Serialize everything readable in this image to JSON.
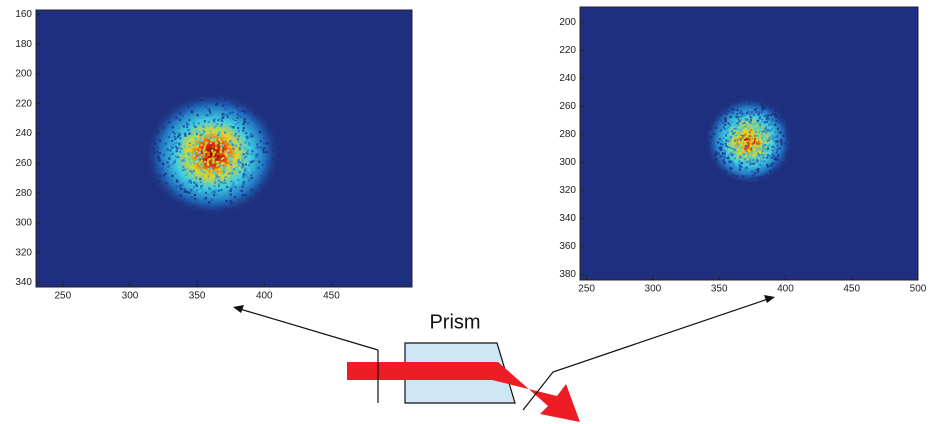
{
  "chart_data": [
    {
      "type": "image",
      "xlim": [
        230,
        510
      ],
      "ylim": [
        157,
        343
      ],
      "y_reversed": true,
      "xticks": [
        250,
        300,
        350,
        400,
        450
      ],
      "yticks": [
        160,
        180,
        200,
        220,
        240,
        260,
        280,
        300,
        320,
        340
      ]
    },
    {
      "type": "image",
      "xlim": [
        245,
        500
      ],
      "ylim": [
        189,
        384
      ],
      "y_reversed": true,
      "xticks": [
        250,
        300,
        350,
        400,
        450,
        500
      ],
      "yticks": [
        200,
        220,
        240,
        260,
        280,
        300,
        320,
        340,
        360,
        380
      ]
    }
  ],
  "diagram": {
    "prism_label": "Prism"
  }
}
